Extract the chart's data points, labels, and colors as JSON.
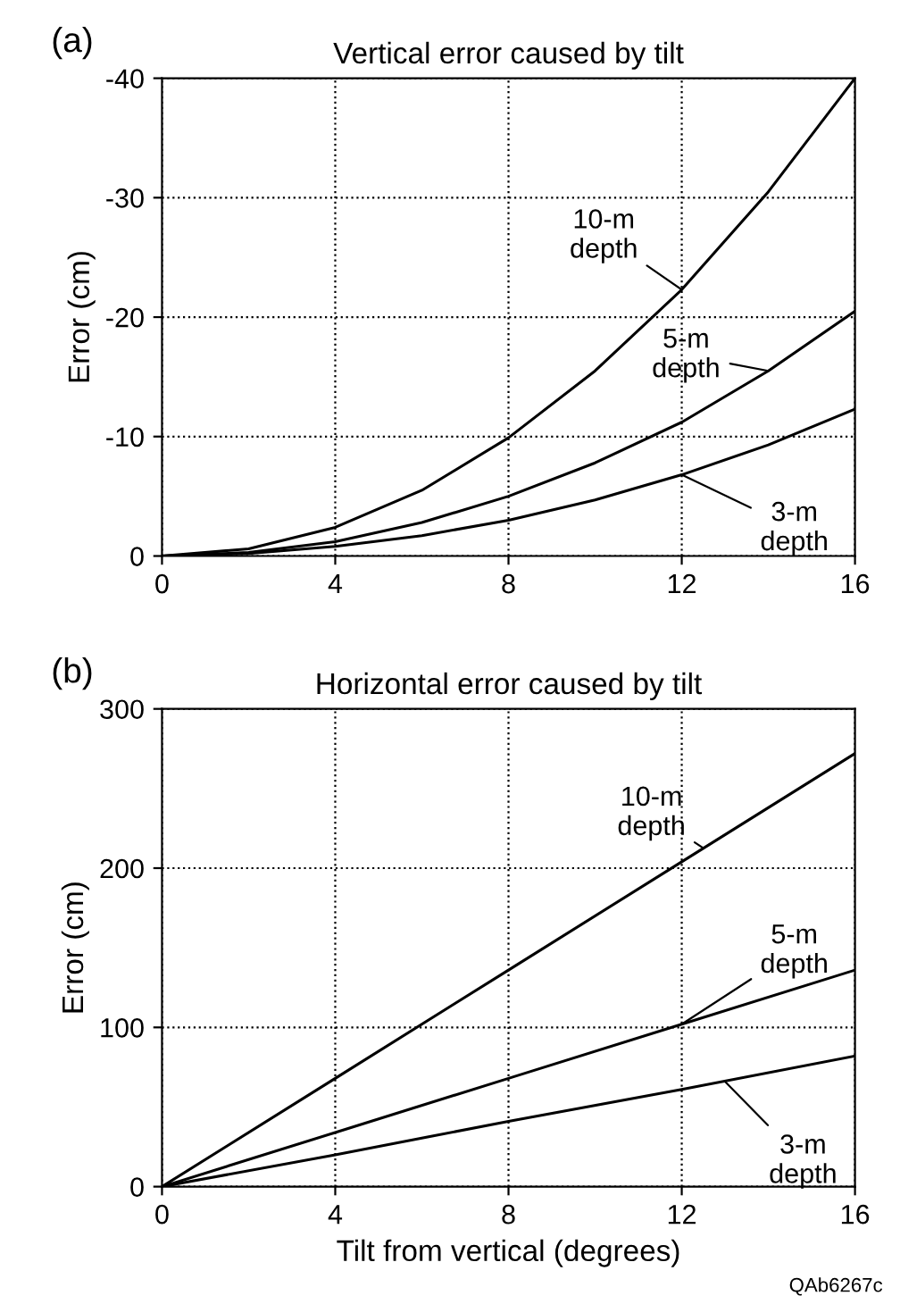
{
  "chart_data": [
    {
      "type": "line",
      "title": "Vertical error caused by tilt",
      "ylabel": "Error (cm)",
      "x": [
        0,
        2,
        4,
        6,
        8,
        10,
        12,
        14,
        16
      ],
      "series": [
        {
          "color": "#000000",
          "values": [
            0,
            -0.6,
            -2.4,
            -5.5,
            -9.9,
            -15.5,
            -22.3,
            -30.5,
            -40
          ]
        },
        {
          "color": "#000000",
          "values": [
            0,
            -0.3,
            -1.2,
            -2.8,
            -5,
            -7.8,
            -11.2,
            -15.5,
            -20.5
          ]
        },
        {
          "color": "#000000",
          "values": [
            0,
            -0.2,
            -0.8,
            -1.7,
            -3,
            -4.7,
            -6.8,
            -9.3,
            -12.3
          ]
        }
      ],
      "annotations": [
        "(a)",
        {
          "text": "10-m\ndepth",
          "x": 12,
          "y": -22.3
        },
        {
          "text": "5-m\ndepth",
          "x": 14,
          "y": -15.5
        },
        {
          "text": "3-m\ndepth",
          "x": 12,
          "y": -6.8
        }
      ],
      "xlim": [
        0,
        16
      ],
      "xticks": [
        0,
        4,
        8,
        12,
        16
      ],
      "ylim": [
        0,
        -40
      ],
      "yticks": [
        0,
        -10,
        -20,
        -30,
        -40
      ],
      "grid": true,
      "marker": "none"
    },
    {
      "type": "line",
      "title": "Horizontal error caused by tilt",
      "ylabel": "Error (cm)",
      "xlabel": "Tilt from vertical (degrees)",
      "x": [
        0,
        4,
        8,
        12,
        16
      ],
      "series": [
        {
          "color": "#000000",
          "values": [
            0,
            68,
            136,
            204,
            272
          ]
        },
        {
          "color": "#000000",
          "values": [
            0,
            34,
            68,
            102,
            136
          ]
        },
        {
          "color": "#000000",
          "values": [
            0,
            20,
            41,
            61,
            82
          ]
        }
      ],
      "annotations": [
        "(b)",
        {
          "text": "10-m\ndepth",
          "x": 12.5,
          "y": 212.5
        },
        {
          "text": "5-m\ndepth",
          "x": 12,
          "y": 102
        },
        {
          "text": "3-m\ndepth",
          "x": 13,
          "y": 66
        },
        "QAb6267c"
      ],
      "xlim": [
        0,
        16
      ],
      "xticks": [
        0,
        4,
        8,
        12,
        16
      ],
      "ylim": [
        0,
        300
      ],
      "yticks": [
        0,
        100,
        200,
        300
      ],
      "grid": true,
      "marker": "none"
    }
  ]
}
